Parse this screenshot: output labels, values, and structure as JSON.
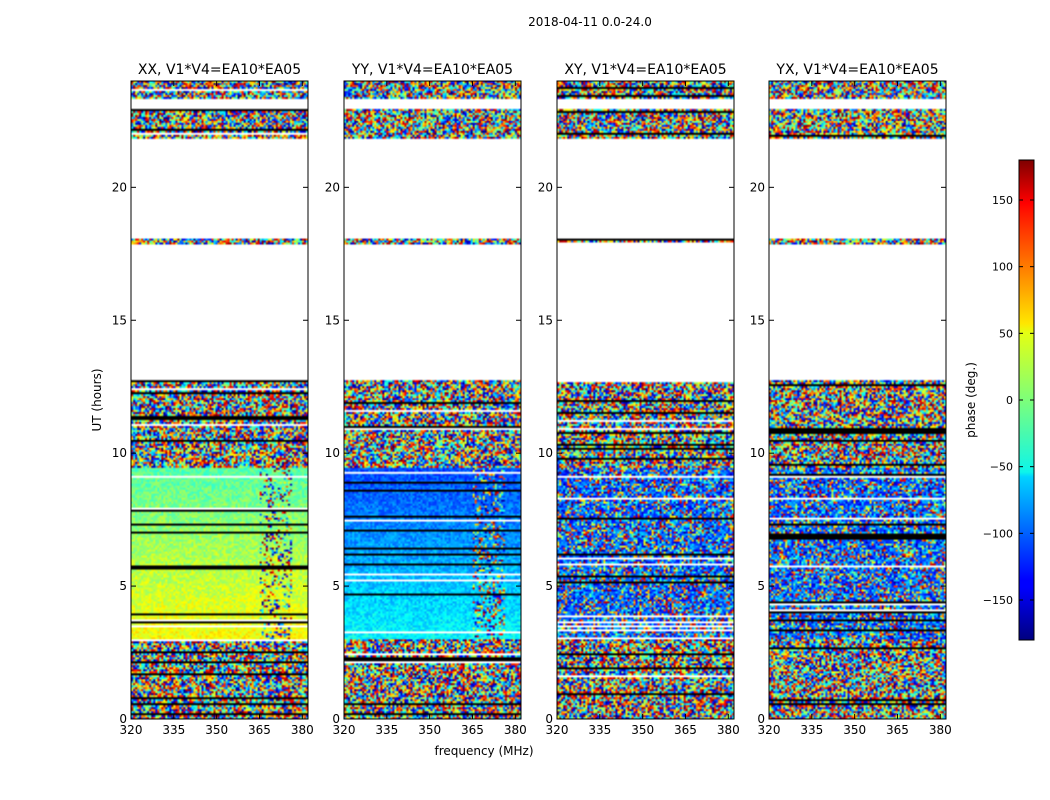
{
  "figure_title": "2018-04-11 0.0-24.0",
  "chart_data": {
    "type": "heatmap",
    "title": "2018-04-11 0.0-24.0",
    "xlabel": "frequency (MHz)",
    "ylabel": "UT (hours)",
    "xlim": [
      320,
      382
    ],
    "ylim": [
      0,
      24
    ],
    "x_ticks": [
      320,
      335,
      350,
      365,
      380
    ],
    "y_ticks": [
      0,
      5,
      10,
      15,
      20
    ],
    "colorbar": {
      "label": "phase (deg.)",
      "range": [
        -180,
        180
      ],
      "ticks": [
        -150,
        -100,
        -50,
        0,
        50,
        100,
        150
      ],
      "tick_labels": [
        "−150",
        "−100",
        "−50",
        "0",
        "50",
        "100",
        "150"
      ],
      "colormap": "jet"
    },
    "data_segments_ut": [
      {
        "from": 0.0,
        "to": 3.0,
        "pattern": "noise"
      },
      {
        "from": 3.0,
        "to": 9.5,
        "pattern": "smooth"
      },
      {
        "from": 9.5,
        "to": 12.7,
        "pattern": "noise"
      },
      {
        "from": 17.9,
        "to": 18.05,
        "pattern": "noise"
      },
      {
        "from": 21.9,
        "to": 22.9,
        "pattern": "noise"
      },
      {
        "from": 23.4,
        "to": 24.0,
        "pattern": "noise"
      }
    ],
    "panels": [
      {
        "title": "XX, V1*V4=EA10*EA05",
        "smooth_phase_trend": [
          -15,
          45
        ],
        "mean_phase_deg": 20
      },
      {
        "title": "YY, V1*V4=EA10*EA05",
        "smooth_phase_trend": [
          -110,
          -45
        ],
        "mean_phase_deg": -80
      },
      {
        "title": "XY, V1*V4=EA10*EA05",
        "smooth_phase_trend": null,
        "mean_phase_deg": null
      },
      {
        "title": "YX, V1*V4=EA10*EA05",
        "smooth_phase_trend": null,
        "mean_phase_deg": null
      }
    ]
  }
}
